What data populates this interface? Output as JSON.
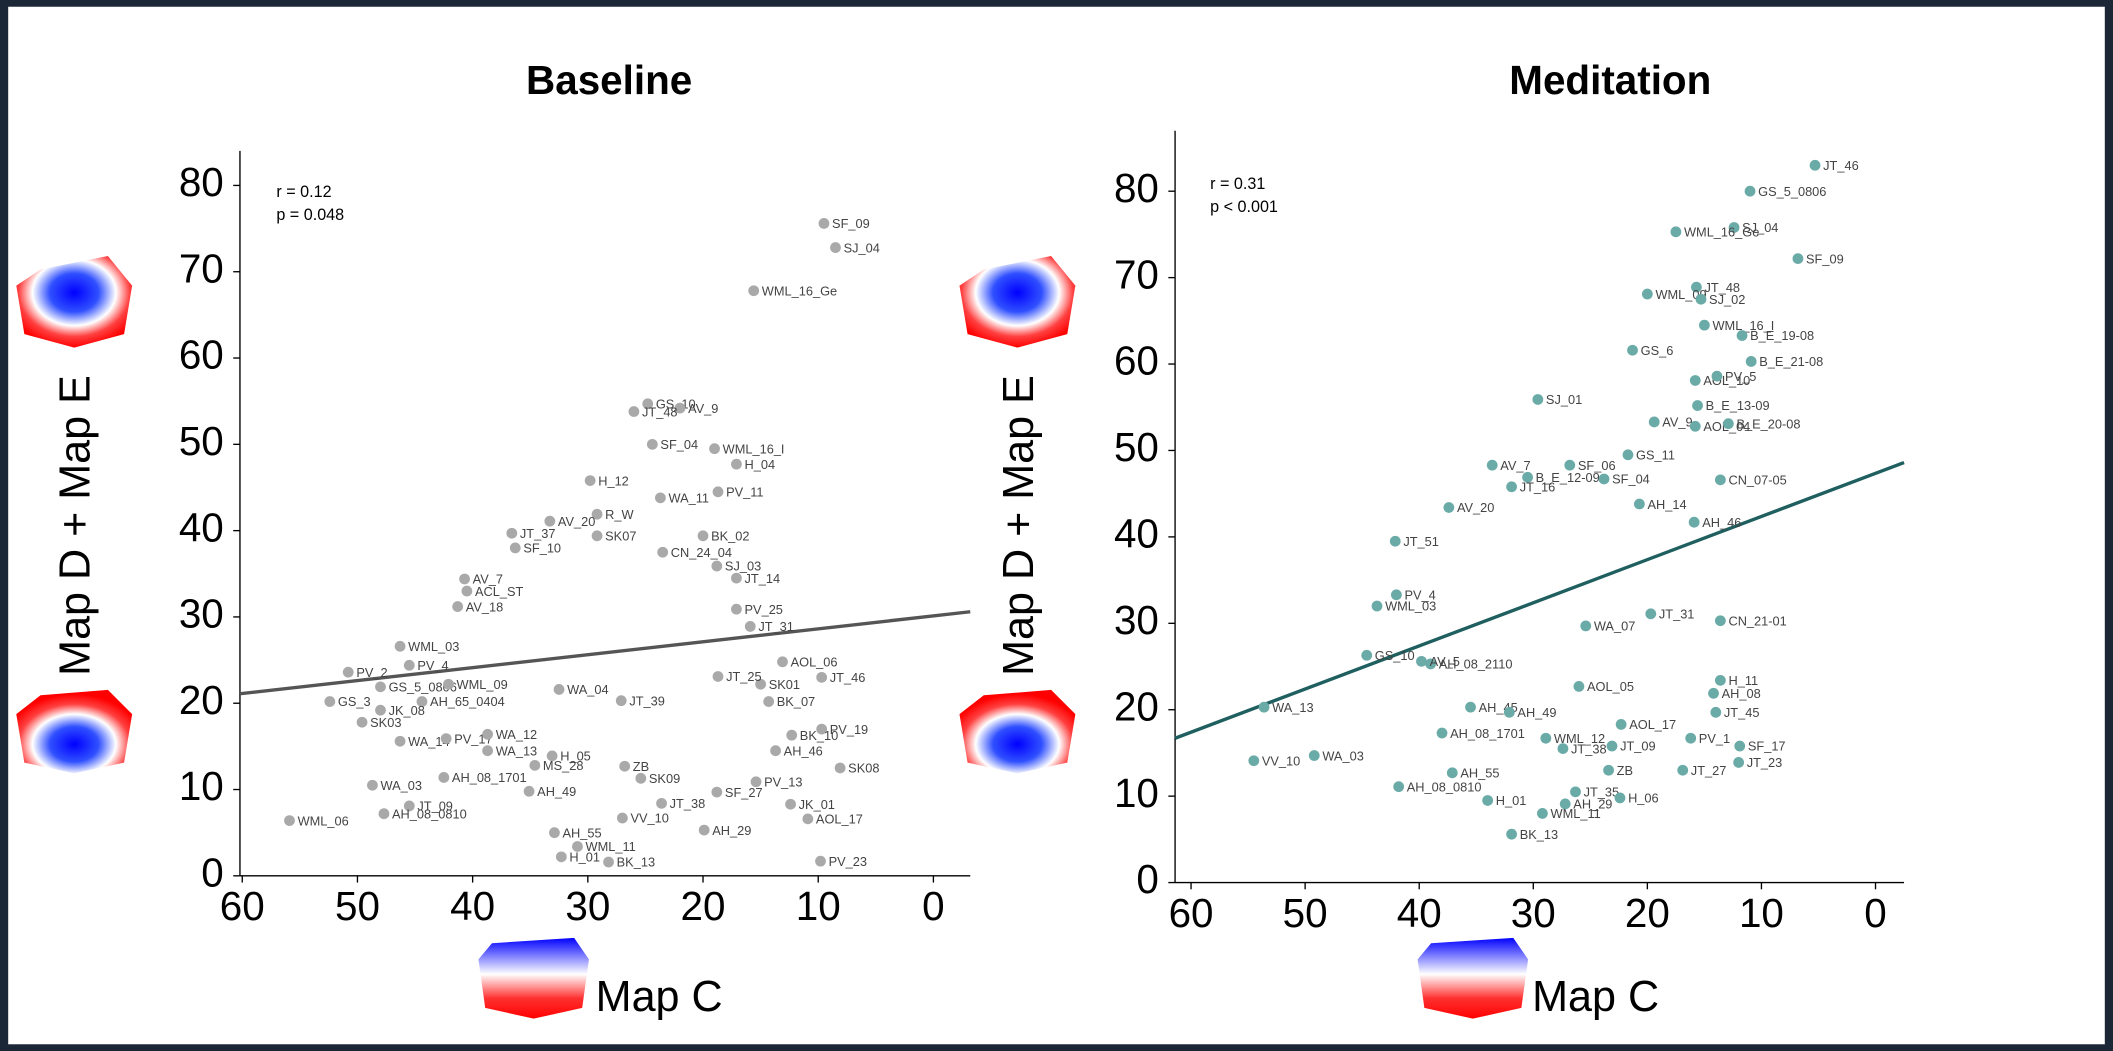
{
  "chart_data": [
    {
      "type": "scatter",
      "title": "Baseline",
      "x_label": "Map C",
      "y_label": "Map D + Map E",
      "annotations": [
        "r = 0.12",
        "p = 0.048"
      ],
      "color": "#a9a9a9",
      "labels": [
        "SF_09",
        "SJ_04",
        "WML_16_Ge",
        "GS_10",
        "AV_9",
        "JT_48",
        "SF_04",
        "WML_16_I",
        "H_04",
        "H_12",
        "PV_11",
        "WA_11",
        "R_W",
        "AV_20",
        "JT_37",
        "SK07",
        "BK_02",
        "SF_10",
        "CN_24_04",
        "SJ_03",
        "JT_14",
        "AV_7",
        "AV_18",
        "PV_25",
        "JT_31",
        "WML_03",
        "PV_2",
        "PV_4",
        "AOL_06",
        "JT_46",
        "GS_5_0806",
        "WML_09",
        "GS_3",
        "SK01",
        "BK_07",
        "AH_65_0404",
        "JK_08",
        "SK03",
        "PV_19",
        "BK_10",
        "WA_14",
        "PV_17",
        "WA_12",
        "AH_46",
        "WA_13",
        "H_05",
        "SK08",
        "MS_28",
        "ZB",
        "SK09",
        "AH_08_1701",
        "PV_13",
        "WA_03",
        "AH_49",
        "SF_27",
        "JT_09",
        "JT_38",
        "JK_01",
        "WML_06",
        "AH_08_0810",
        "AOL_17",
        "VV_10",
        "AH_29",
        "AH_55",
        "WML_11",
        "H_01",
        "BK_13",
        "PV_23",
        "JT_39",
        "WA_04",
        "JT_25",
        "ACL_ST"
      ],
      "x": [
        9.5,
        8.5,
        15.6,
        24.8,
        22,
        26,
        24.4,
        19,
        17.1,
        29.8,
        18.7,
        23.7,
        29.2,
        33.3,
        36.6,
        29.2,
        20,
        36.3,
        23.5,
        18.8,
        17.1,
        40.7,
        41.3,
        17.1,
        15.9,
        46.3,
        50.8,
        45.5,
        13.1,
        9.7,
        48,
        42.1,
        52.4,
        15,
        14.3,
        44.4,
        48,
        49.6,
        9.7,
        12.3,
        46.3,
        42.3,
        38.7,
        13.7,
        38.7,
        33.1,
        8.1,
        34.6,
        26.8,
        25.4,
        42.5,
        15.4,
        48.7,
        35.1,
        18.8,
        45.5,
        23.6,
        12.4,
        55.9,
        47.7,
        10.9,
        27,
        19.9,
        32.9,
        30.9,
        32.3,
        28.2,
        9.8,
        27.1,
        32.5,
        18.7,
        40.5
      ],
      "y": [
        75.6,
        72.8,
        67.8,
        54.7,
        54.2,
        53.8,
        50,
        49.5,
        47.7,
        45.8,
        44.5,
        43.8,
        41.9,
        41.1,
        39.7,
        39.4,
        39.4,
        38,
        37.5,
        35.9,
        34.5,
        34.4,
        31.2,
        30.9,
        28.9,
        26.6,
        23.6,
        24.4,
        24.8,
        23,
        21.9,
        22.2,
        20.2,
        22.2,
        20.2,
        20.2,
        19.2,
        17.8,
        17,
        16.3,
        15.6,
        15.9,
        16.4,
        14.5,
        14.5,
        13.9,
        12.5,
        12.8,
        12.7,
        11.3,
        11.4,
        10.9,
        10.5,
        9.8,
        9.7,
        8.1,
        8.4,
        8.3,
        6.4,
        7.2,
        6.6,
        6.7,
        5.3,
        5,
        3.4,
        2.2,
        1.6,
        1.7,
        20.3,
        21.6,
        23.1,
        33
      ],
      "trendline": {
        "x": [
          60.2,
          -3.2
        ],
        "y": [
          21.1,
          30.6
        ],
        "color": "#555555"
      },
      "xlim": [
        60.2,
        -3.2
      ],
      "ylim": [
        0,
        84
      ],
      "xticks": [
        60,
        50,
        40,
        30,
        20,
        10,
        0
      ],
      "yticks": [
        0,
        10,
        20,
        30,
        40,
        50,
        60,
        70,
        80
      ]
    },
    {
      "type": "scatter",
      "title": "Meditation",
      "x_label": "Map C",
      "y_label": "Map D + Map E",
      "annotations": [
        "r = 0.31",
        "p < 0.001"
      ],
      "color": "#6aaba8",
      "labels": [
        "JT_46",
        "GS_5_0806",
        "SJ_04",
        "WML_16_Ge",
        "SF_09",
        "JT_48",
        "WML_09",
        "SJ_02",
        "WML_16_I",
        "B_E_19-08",
        "GS_6",
        "B_E_21-08",
        "AOL_10",
        "PV_5",
        "SJ_01",
        "B_E_13-09",
        "AV_9",
        "AOL_04",
        "B_E_20-08",
        "GS_11",
        "AV_7",
        "SF_06",
        "B_E_12-09",
        "JT_16",
        "SF_04",
        "CN_07-05",
        "AH_14",
        "AV_20",
        "AH_46",
        "JT_51",
        "PV_4",
        "WML_03",
        "CN_21-01",
        "GS_10",
        "AH_08_2110",
        "WA_13",
        "AH_45",
        "AH_49",
        "H_11",
        "AH_08",
        "JT_45",
        "AH_08_1701",
        "AOL_17",
        "PV_1",
        "SF_17",
        "WML_12",
        "JT_38",
        "JT_09",
        "VV_10",
        "WA_03",
        "JT_23",
        "JT_27",
        "ZB",
        "AH_55",
        "AH_08_0810",
        "JT_35",
        "H_06",
        "H_01",
        "AH_29",
        "WML_11",
        "BK_13",
        "JT_31",
        "AV_5",
        "AOL_05",
        "WA_07"
      ],
      "x": [
        5.3,
        11,
        12.4,
        17.5,
        6.8,
        15.7,
        20,
        15.3,
        15,
        11.7,
        21.3,
        10.9,
        15.8,
        13.9,
        29.6,
        15.6,
        19.4,
        15.8,
        12.9,
        21.7,
        33.6,
        26.8,
        30.5,
        31.9,
        23.8,
        13.6,
        20.7,
        37.4,
        15.9,
        42.1,
        42,
        43.7,
        13.6,
        44.6,
        39,
        53.6,
        35.5,
        32.1,
        13.6,
        14.2,
        14,
        38,
        22.3,
        16.2,
        11.9,
        28.9,
        27.4,
        23.1,
        54.5,
        49.2,
        12,
        16.9,
        23.4,
        37.1,
        41.8,
        26.3,
        22.4,
        34,
        27.2,
        29.2,
        31.9,
        19.7,
        39.8,
        26,
        25.4
      ],
      "y": [
        83,
        80,
        75.8,
        75.3,
        72.2,
        68.9,
        68.1,
        67.5,
        64.5,
        63.3,
        61.6,
        60.3,
        58.1,
        58.6,
        55.9,
        55.2,
        53.3,
        52.8,
        53.1,
        49.5,
        48.3,
        48.3,
        46.9,
        45.8,
        46.7,
        46.6,
        43.8,
        43.4,
        41.7,
        39.5,
        33.3,
        32,
        30.3,
        26.3,
        25.3,
        20.3,
        20.3,
        19.7,
        23.4,
        21.9,
        19.7,
        17.3,
        18.3,
        16.7,
        15.8,
        16.7,
        15.5,
        15.8,
        14.1,
        14.7,
        13.9,
        13,
        13,
        12.7,
        11.1,
        10.5,
        9.8,
        9.5,
        9.1,
        8,
        5.6,
        31.1,
        25.6,
        22.7,
        29.7
      ],
      "trendline": {
        "x": [
          61.4,
          -2.5
        ],
        "y": [
          16.7,
          48.6
        ],
        "color": "#1f5f5f"
      },
      "xlim": [
        61.4,
        -2.5
      ],
      "ylim": [
        0,
        87
      ],
      "xticks": [
        60,
        50,
        40,
        30,
        20,
        10,
        0
      ],
      "yticks": [
        0,
        10,
        20,
        30,
        40,
        50,
        60,
        70,
        80
      ]
    }
  ]
}
